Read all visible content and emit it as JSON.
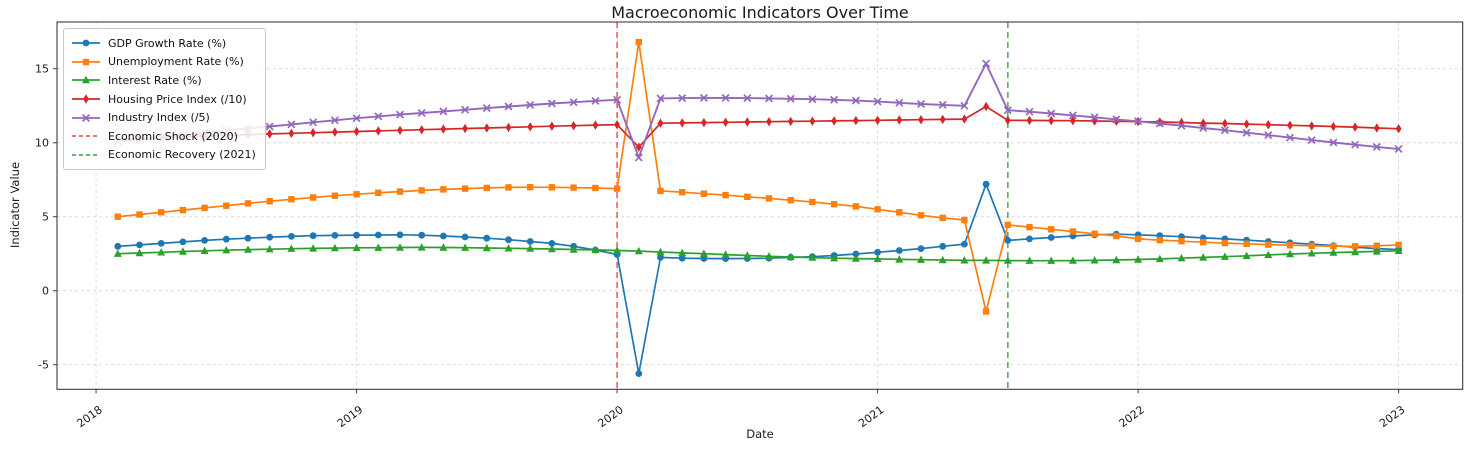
{
  "chart_data": {
    "type": "line",
    "title": "Macroeconomic Indicators Over Time",
    "xlabel": "Date",
    "ylabel": "Indicator Value",
    "x_ticks": [
      2018,
      2019,
      2020,
      2021,
      2022,
      2023
    ],
    "y_ticks": [
      -5,
      0,
      5,
      10,
      15
    ],
    "xlim": [
      2017.85,
      2023.246
    ],
    "ylim": [
      -6.66,
      18.16
    ],
    "grid": true,
    "legend_position": "upper-left",
    "x_start_year": 2018.0833,
    "x_step_years": 0.08333,
    "points_per_series": 60,
    "series": [
      {
        "name": "GDP Growth Rate (%)",
        "color": "#1f77b4",
        "marker": "circle",
        "values": [
          3.0,
          3.1,
          3.2,
          3.3,
          3.4,
          3.48,
          3.55,
          3.62,
          3.67,
          3.72,
          3.74,
          3.75,
          3.77,
          3.78,
          3.75,
          3.7,
          3.63,
          3.55,
          3.45,
          3.33,
          3.2,
          3.0,
          2.75,
          2.45,
          -5.6,
          2.25,
          2.2,
          2.18,
          2.17,
          2.18,
          2.2,
          2.25,
          2.3,
          2.38,
          2.48,
          2.6,
          2.72,
          2.85,
          3.0,
          3.15,
          7.2,
          3.4,
          3.5,
          3.6,
          3.7,
          3.78,
          3.82,
          3.78,
          3.72,
          3.65,
          3.57,
          3.5,
          3.42,
          3.33,
          3.24,
          3.15,
          3.05,
          2.95,
          2.85,
          2.78
        ]
      },
      {
        "name": "Unemployment Rate (%)",
        "color": "#ff7f0e",
        "marker": "square",
        "values": [
          5.0,
          5.15,
          5.3,
          5.45,
          5.6,
          5.75,
          5.9,
          6.05,
          6.18,
          6.3,
          6.42,
          6.52,
          6.62,
          6.7,
          6.78,
          6.85,
          6.9,
          6.95,
          6.98,
          7.0,
          6.99,
          6.97,
          6.94,
          6.9,
          16.8,
          6.75,
          6.66,
          6.56,
          6.46,
          6.35,
          6.24,
          6.12,
          6.0,
          5.85,
          5.7,
          5.5,
          5.3,
          5.1,
          4.92,
          4.78,
          -1.4,
          4.45,
          4.3,
          4.15,
          4.0,
          3.85,
          3.7,
          3.5,
          3.42,
          3.35,
          3.28,
          3.22,
          3.17,
          3.12,
          3.08,
          3.04,
          3.01,
          3.0,
          3.04,
          3.1
        ]
      },
      {
        "name": "Interest Rate (%)",
        "color": "#2ca02c",
        "marker": "triangle",
        "values": [
          2.5,
          2.55,
          2.6,
          2.65,
          2.7,
          2.74,
          2.78,
          2.81,
          2.84,
          2.86,
          2.88,
          2.9,
          2.91,
          2.92,
          2.93,
          2.92,
          2.91,
          2.89,
          2.87,
          2.85,
          2.82,
          2.79,
          2.76,
          2.72,
          2.68,
          2.62,
          2.56,
          2.5,
          2.44,
          2.38,
          2.33,
          2.28,
          2.24,
          2.2,
          2.17,
          2.15,
          2.12,
          2.1,
          2.08,
          2.06,
          2.05,
          2.04,
          2.03,
          2.03,
          2.04,
          2.06,
          2.08,
          2.11,
          2.15,
          2.2,
          2.25,
          2.3,
          2.36,
          2.42,
          2.48,
          2.53,
          2.58,
          2.62,
          2.66,
          2.7
        ]
      },
      {
        "name": "Housing Price Index (/10)",
        "color": "#d62728",
        "marker": "diamond",
        "values": [
          10.25,
          10.3,
          10.35,
          10.4,
          10.45,
          10.5,
          10.55,
          10.6,
          10.64,
          10.68,
          10.72,
          10.76,
          10.8,
          10.84,
          10.88,
          10.92,
          10.96,
          11.0,
          11.04,
          11.08,
          11.12,
          11.15,
          11.19,
          11.22,
          9.7,
          11.32,
          11.34,
          11.36,
          11.38,
          11.4,
          11.42,
          11.44,
          11.46,
          11.48,
          11.5,
          11.52,
          11.54,
          11.56,
          11.58,
          11.6,
          12.45,
          11.52,
          11.51,
          11.5,
          11.49,
          11.47,
          11.45,
          11.43,
          11.4,
          11.37,
          11.33,
          11.3,
          11.26,
          11.22,
          11.18,
          11.14,
          11.1,
          11.06,
          11.0,
          10.95
        ]
      },
      {
        "name": "Industry Index (/5)",
        "color": "#9467bd",
        "marker": "x",
        "values": [
          10.08,
          10.22,
          10.37,
          10.52,
          10.67,
          10.82,
          10.97,
          11.1,
          11.24,
          11.38,
          11.52,
          11.66,
          11.78,
          11.9,
          12.01,
          12.12,
          12.23,
          12.34,
          12.45,
          12.55,
          12.65,
          12.74,
          12.83,
          12.9,
          9.0,
          13.0,
          13.02,
          13.03,
          13.03,
          13.02,
          13.0,
          12.97,
          12.94,
          12.9,
          12.85,
          12.78,
          12.7,
          12.62,
          12.56,
          12.5,
          15.35,
          12.2,
          12.1,
          11.98,
          11.85,
          11.72,
          11.58,
          11.45,
          11.3,
          11.15,
          11.0,
          10.85,
          10.68,
          10.52,
          10.35,
          10.18,
          10.02,
          9.87,
          9.72,
          9.58
        ]
      }
    ],
    "vlines": [
      {
        "label": "Economic Shock (2020)",
        "x": 2020.0,
        "color": "#ee4444",
        "style": "dashed"
      },
      {
        "label": "Economic Recovery (2021)",
        "x": 2021.5,
        "color": "#3f9e3f",
        "style": "dashed"
      }
    ],
    "colors": {
      "grid": "#cccccc",
      "spine": "#3c3c3c",
      "tick_text": "#1a1a1a"
    }
  }
}
